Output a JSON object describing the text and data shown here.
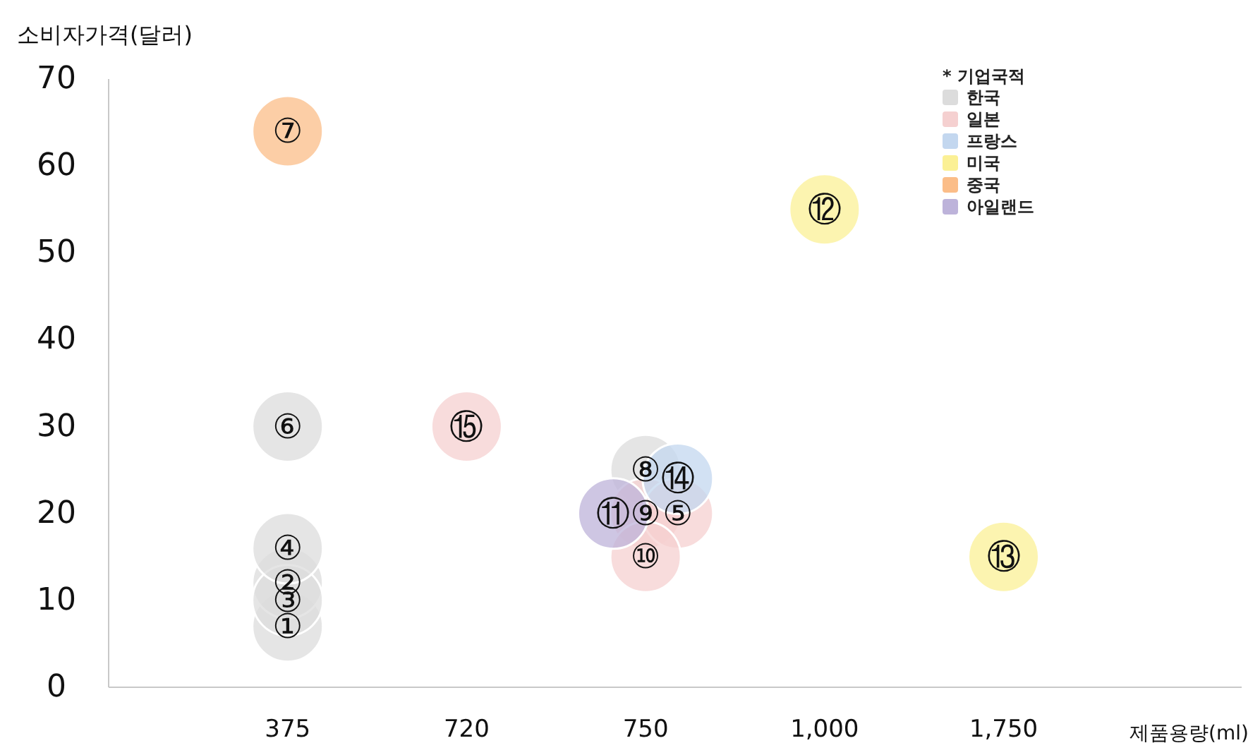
{
  "chart_data": {
    "type": "scatter",
    "ylabel": "소비자가격(달러)",
    "xlabel": "제품용량(ml)",
    "legend_title": "* 기업국적",
    "legend": "top right",
    "marker": "circle",
    "categories": [
      "375",
      "720",
      "750",
      "1,000",
      "1,750"
    ],
    "ylim": [
      0,
      70
    ],
    "yticks": [
      0,
      10,
      20,
      30,
      40,
      50,
      60,
      70
    ],
    "series": [
      {
        "name": "한국",
        "color": "#dcdcdc",
        "x": [
          "375",
          "375",
          "375",
          "375",
          "375",
          "750"
        ],
        "values": [
          7,
          12,
          10,
          16,
          30,
          25
        ],
        "value_labels": [
          "①",
          "②",
          "③",
          "④",
          "⑥",
          "⑧"
        ]
      },
      {
        "name": "일본",
        "color": "#f5d0d0",
        "x": [
          "750",
          "750",
          "750",
          "720"
        ],
        "values": [
          20,
          20,
          15,
          30
        ],
        "value_labels": [
          "⑨",
          "⑤",
          "⑩",
          "⑮"
        ]
      },
      {
        "name": "프랑스",
        "color": "#c3d7ef",
        "x": [
          "750"
        ],
        "values": [
          24
        ],
        "value_labels": [
          "⑭"
        ]
      },
      {
        "name": "미국",
        "color": "#fbf095",
        "x": [
          "1,000",
          "1,750"
        ],
        "values": [
          55,
          15
        ],
        "value_labels": [
          "⑫",
          "⑬"
        ]
      },
      {
        "name": "중국",
        "color": "#fbbd88",
        "x": [
          "375"
        ],
        "values": [
          64
        ],
        "value_labels": [
          "⑦"
        ]
      },
      {
        "name": "아일랜드",
        "color": "#bdb3da",
        "x": [
          "750"
        ],
        "values": [
          20
        ],
        "value_labels": [
          "⑪"
        ]
      }
    ]
  }
}
